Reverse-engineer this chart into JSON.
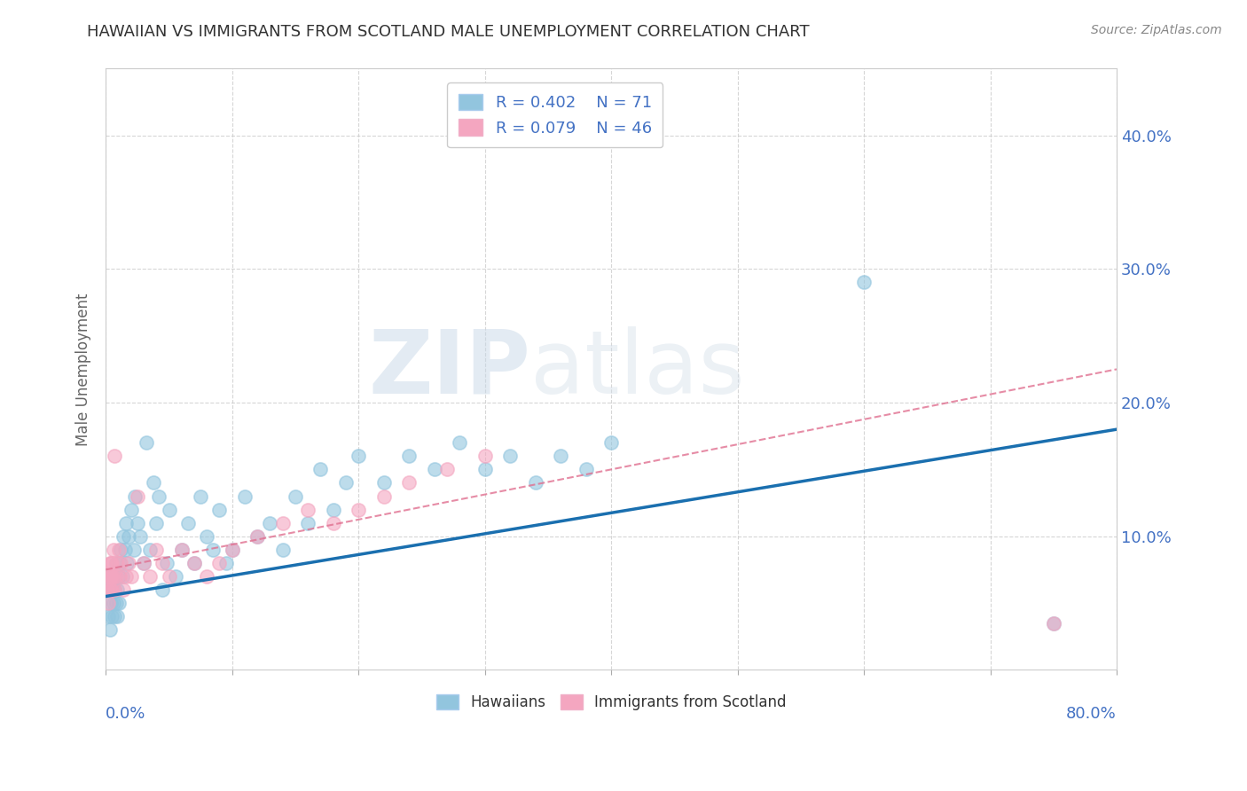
{
  "title": "HAWAIIAN VS IMMIGRANTS FROM SCOTLAND MALE UNEMPLOYMENT CORRELATION CHART",
  "source": "Source: ZipAtlas.com",
  "ylabel": "Male Unemployment",
  "xlim": [
    0,
    0.8
  ],
  "ylim": [
    0,
    0.45
  ],
  "yticks": [
    0.1,
    0.2,
    0.3,
    0.4
  ],
  "ytick_labels": [
    "10.0%",
    "20.0%",
    "30.0%",
    "40.0%"
  ],
  "xtick_labels": [
    "0.0%",
    "",
    "",
    "",
    "",
    "",
    "",
    "",
    "80.0%"
  ],
  "legend_r1": "R = 0.402",
  "legend_n1": "N = 71",
  "legend_r2": "R = 0.079",
  "legend_n2": "N = 46",
  "color_hawaiian": "#92c5de",
  "color_scotland": "#f4a6c0",
  "color_line_hawaiian": "#1a6faf",
  "color_line_scotland": "#e07090",
  "background_color": "#ffffff",
  "watermark_zip": "ZIP",
  "watermark_atlas": "atlas",
  "hawaiian_x": [
    0.002,
    0.003,
    0.003,
    0.004,
    0.004,
    0.005,
    0.005,
    0.006,
    0.006,
    0.007,
    0.007,
    0.008,
    0.008,
    0.009,
    0.009,
    0.01,
    0.01,
    0.011,
    0.012,
    0.013,
    0.014,
    0.015,
    0.016,
    0.017,
    0.018,
    0.02,
    0.022,
    0.023,
    0.025,
    0.027,
    0.03,
    0.032,
    0.035,
    0.038,
    0.04,
    0.042,
    0.045,
    0.048,
    0.05,
    0.055,
    0.06,
    0.065,
    0.07,
    0.075,
    0.08,
    0.085,
    0.09,
    0.095,
    0.1,
    0.11,
    0.12,
    0.13,
    0.14,
    0.15,
    0.16,
    0.17,
    0.18,
    0.19,
    0.2,
    0.22,
    0.24,
    0.26,
    0.28,
    0.3,
    0.32,
    0.34,
    0.36,
    0.38,
    0.4,
    0.6,
    0.75
  ],
  "hawaiian_y": [
    0.04,
    0.06,
    0.03,
    0.05,
    0.07,
    0.04,
    0.06,
    0.05,
    0.07,
    0.04,
    0.06,
    0.05,
    0.08,
    0.04,
    0.06,
    0.07,
    0.05,
    0.08,
    0.09,
    0.07,
    0.1,
    0.09,
    0.11,
    0.08,
    0.1,
    0.12,
    0.09,
    0.13,
    0.11,
    0.1,
    0.08,
    0.17,
    0.09,
    0.14,
    0.11,
    0.13,
    0.06,
    0.08,
    0.12,
    0.07,
    0.09,
    0.11,
    0.08,
    0.13,
    0.1,
    0.09,
    0.12,
    0.08,
    0.09,
    0.13,
    0.1,
    0.11,
    0.09,
    0.13,
    0.11,
    0.15,
    0.12,
    0.14,
    0.16,
    0.14,
    0.16,
    0.15,
    0.17,
    0.15,
    0.16,
    0.14,
    0.16,
    0.15,
    0.17,
    0.29,
    0.035
  ],
  "scotland_x": [
    0.001,
    0.002,
    0.002,
    0.003,
    0.003,
    0.003,
    0.004,
    0.004,
    0.004,
    0.005,
    0.005,
    0.005,
    0.006,
    0.006,
    0.007,
    0.007,
    0.008,
    0.009,
    0.01,
    0.011,
    0.012,
    0.014,
    0.016,
    0.018,
    0.02,
    0.025,
    0.03,
    0.035,
    0.04,
    0.045,
    0.05,
    0.06,
    0.07,
    0.08,
    0.09,
    0.1,
    0.12,
    0.14,
    0.16,
    0.18,
    0.2,
    0.22,
    0.24,
    0.27,
    0.3,
    0.75
  ],
  "scotland_y": [
    0.06,
    0.07,
    0.05,
    0.06,
    0.08,
    0.07,
    0.06,
    0.08,
    0.07,
    0.06,
    0.08,
    0.07,
    0.09,
    0.07,
    0.16,
    0.06,
    0.07,
    0.08,
    0.09,
    0.07,
    0.08,
    0.06,
    0.07,
    0.08,
    0.07,
    0.13,
    0.08,
    0.07,
    0.09,
    0.08,
    0.07,
    0.09,
    0.08,
    0.07,
    0.08,
    0.09,
    0.1,
    0.11,
    0.12,
    0.11,
    0.12,
    0.13,
    0.14,
    0.15,
    0.16,
    0.035
  ],
  "trend_h_x0": 0.0,
  "trend_h_x1": 0.8,
  "trend_h_y0": 0.055,
  "trend_h_y1": 0.18,
  "trend_s_x0": 0.0,
  "trend_s_x1": 0.8,
  "trend_s_y0": 0.075,
  "trend_s_y1": 0.225
}
